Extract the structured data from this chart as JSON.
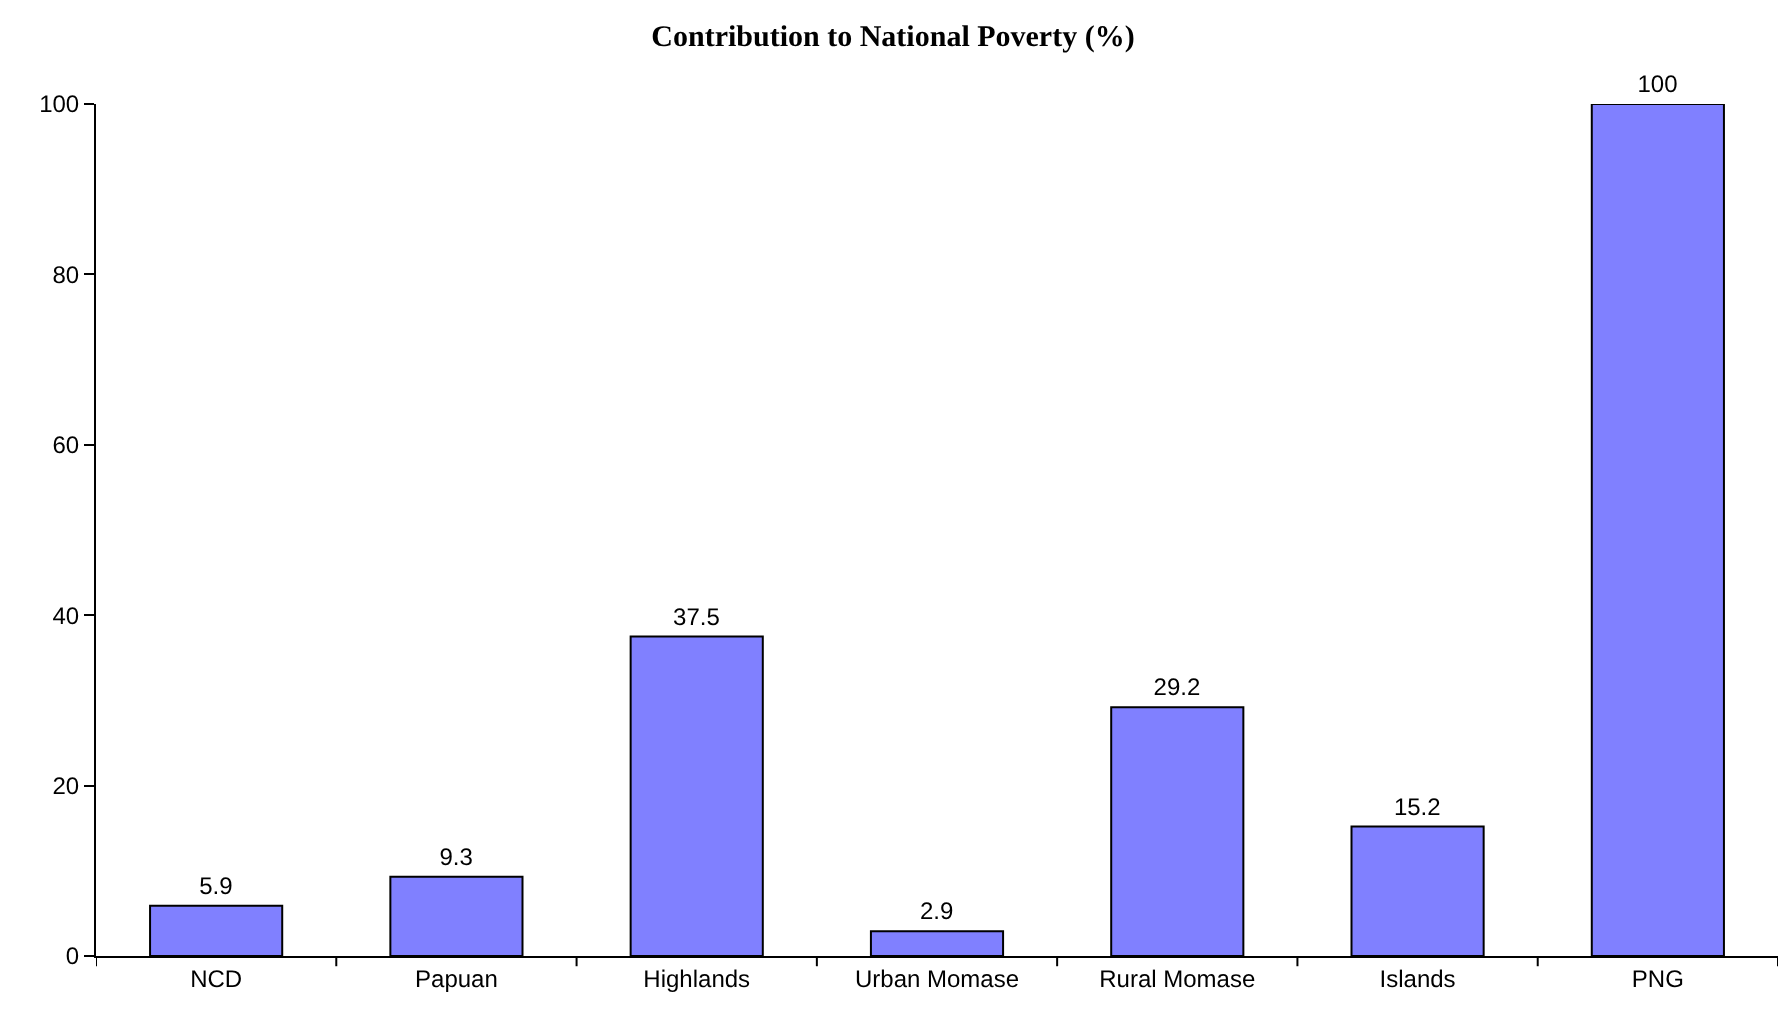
{
  "chart_data": {
    "type": "bar",
    "title": "Contribution to National Poverty (%)",
    "categories": [
      "NCD",
      "Papuan",
      "Highlands",
      "Urban Momase",
      "Rural Momase",
      "Islands",
      "PNG"
    ],
    "values": [
      5.9,
      9.3,
      37.5,
      2.9,
      29.2,
      15.2,
      100
    ],
    "color": "#8080ff",
    "ylim": [
      0,
      100
    ],
    "yticks": [
      0,
      20,
      40,
      60,
      80,
      100
    ],
    "data_labels": true,
    "grid": false,
    "legend": false
  }
}
